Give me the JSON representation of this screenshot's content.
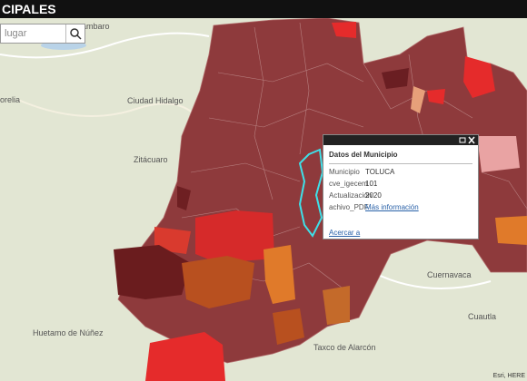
{
  "header": {
    "title": "CIPALES"
  },
  "search": {
    "placeholder": "lugar"
  },
  "places": [
    "orelia",
    "Ciudad Hidalgo",
    "Zitácuaro",
    "Cuernavaca",
    "Cuautla",
    "Huetamo de Núñez",
    "Taxco de Alarcón",
    "ambaro"
  ],
  "popup": {
    "title": "Datos del Municipio",
    "rows": [
      [
        "Municipio",
        "TOLUCA"
      ],
      [
        "cve_igecem",
        "101"
      ],
      [
        "Actualización",
        "2020"
      ],
      [
        "achivo_PDF",
        "Más información"
      ]
    ],
    "zoom_link": "Acercar a"
  },
  "attribution": "Esri, HERE"
}
